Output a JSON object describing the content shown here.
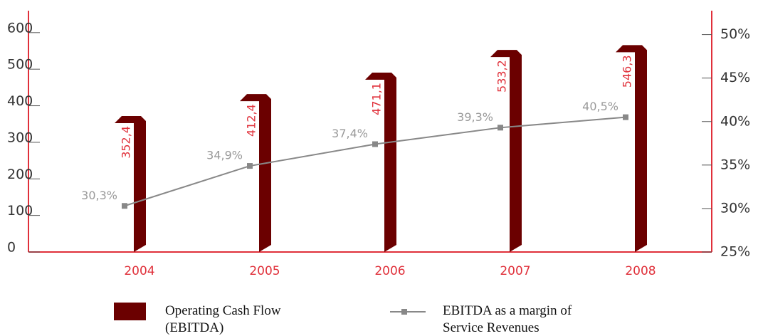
{
  "chart_data": {
    "type": "bar-line",
    "categories": [
      "2004",
      "2005",
      "2006",
      "2007",
      "2008"
    ],
    "series": [
      {
        "name": "Operating Cash Flow (EBITDA)",
        "type": "bar",
        "color": "#6b0000",
        "values": [
          352.4,
          412.4,
          471.1,
          533.2,
          546.3
        ],
        "value_labels": [
          "352,4",
          "412,4",
          "471,1",
          "533,2",
          "546,3"
        ]
      },
      {
        "name": "EBITDA as a margin of Service Revenues",
        "type": "line",
        "axis": "y2",
        "color": "#888888",
        "values": [
          30.3,
          34.9,
          37.4,
          39.3,
          40.5
        ],
        "value_labels": [
          "30,3%",
          "34,9%",
          "37,4%",
          "39,3%",
          "40,5%"
        ]
      }
    ],
    "ylim": [
      0,
      660
    ],
    "yticks": [
      0,
      100,
      200,
      300,
      400,
      500,
      600
    ],
    "y2lim": [
      25,
      52.75
    ],
    "y2ticks": [
      {
        "value": 25,
        "label": "25%"
      },
      {
        "value": 30,
        "label": "30%"
      },
      {
        "value": 35,
        "label": "35%"
      },
      {
        "value": 40,
        "label": "40%"
      },
      {
        "value": 45,
        "label": "45%"
      },
      {
        "value": 50,
        "label": "50%"
      }
    ],
    "axis_color": "#e0303a",
    "label_color": "#e0303a"
  }
}
